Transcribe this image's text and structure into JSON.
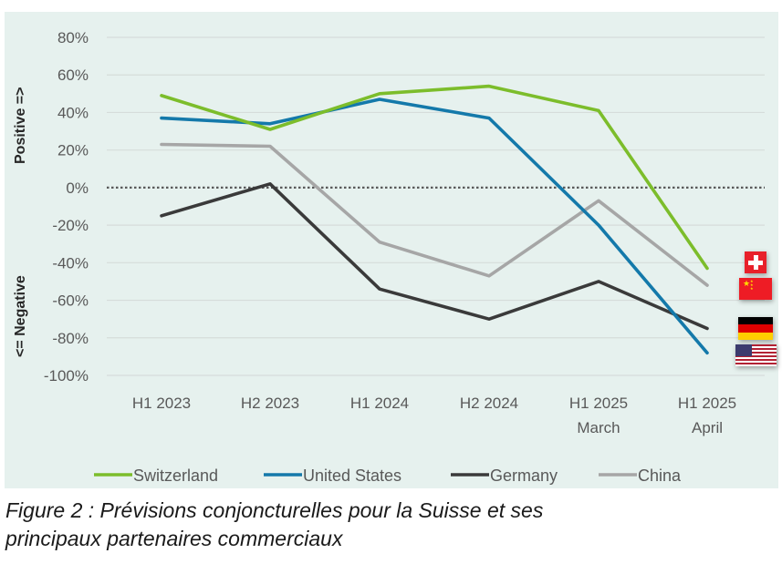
{
  "chart_data": {
    "type": "line",
    "title": "",
    "xlabel": "",
    "ylabel_positive": "Positive =>",
    "ylabel_negative": "<= Negative",
    "categories": [
      [
        "H1 2023"
      ],
      [
        "H2 2023"
      ],
      [
        "H1 2024"
      ],
      [
        "H2 2024"
      ],
      [
        "H1 2025",
        "March"
      ],
      [
        "H1 2025",
        "April"
      ]
    ],
    "ylim": [
      -100,
      80
    ],
    "yticks": [
      80,
      60,
      40,
      20,
      0,
      -20,
      -40,
      -60,
      -80,
      -100
    ],
    "ytick_labels": [
      "80%",
      "60%",
      "40%",
      "20%",
      "0%",
      "-20%",
      "-40%",
      "-60%",
      "-80%",
      "-100%"
    ],
    "grid": true,
    "zero_line": "dotted",
    "legend_position": "bottom",
    "series": [
      {
        "name": "Switzerland",
        "color": "#7cbd2b",
        "values": [
          49,
          31,
          50,
          54,
          41,
          -43
        ],
        "flag": "switzerland"
      },
      {
        "name": "United States",
        "color": "#1479aa",
        "values": [
          37,
          34,
          47,
          37,
          -20,
          -88
        ],
        "flag": "united-states"
      },
      {
        "name": "Germany",
        "color": "#3a3a3a",
        "values": [
          -15,
          2,
          -54,
          -70,
          -50,
          -75
        ],
        "flag": "germany"
      },
      {
        "name": "China",
        "color": "#a6a6a6",
        "values": [
          23,
          22,
          -29,
          -47,
          -7,
          -52
        ],
        "flag": "china"
      }
    ]
  },
  "caption": {
    "line1": "Figure 2 : Prévisions conjoncturelles pour la Suisse et ses",
    "line2": "principaux partenaires commerciaux"
  }
}
